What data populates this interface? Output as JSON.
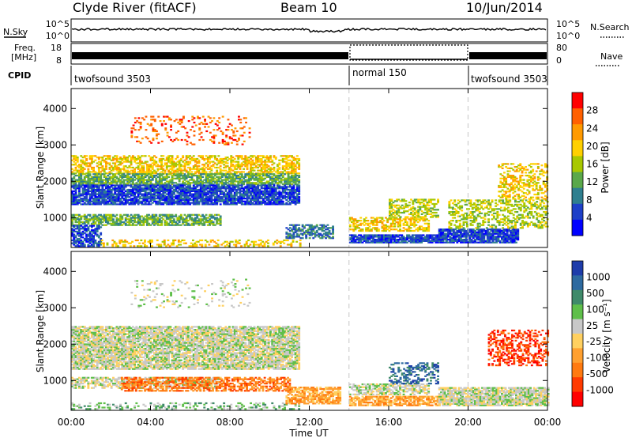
{
  "header": {
    "station": "Clyde River (fitACF)",
    "beam": "Beam 10",
    "date": "10/Jun/2014"
  },
  "top_panels": {
    "nsky_label": "N.Sky",
    "nsearch_label": "N.Search",
    "exp_ticks": [
      "10^5",
      "10^0"
    ],
    "freq_label_line1": "Freq.",
    "freq_label_line2": "[MHz]",
    "freq_ticks": [
      "18",
      "8"
    ],
    "nave_label": "Nave",
    "nave_ticks": [
      "80",
      "0"
    ],
    "cpid_label": "CPID",
    "cpid_segments": [
      {
        "label": "twofsound 3503",
        "start_hour": 0,
        "end_hour": 14
      },
      {
        "label": "normal 150",
        "start_hour": 14,
        "end_hour": 20
      },
      {
        "label": "twofsound 3503",
        "start_hour": 20,
        "end_hour": 24
      }
    ]
  },
  "colorbars": {
    "power": {
      "title": "Power [dB]",
      "tick_labels": [
        "28",
        "24",
        "20",
        "16",
        "12",
        "8",
        "4"
      ],
      "colors": [
        "#ff0000",
        "#ff6000",
        "#ff9a00",
        "#ffd000",
        "#a8c800",
        "#5aa84a",
        "#2f7f8f",
        "#1e40c8",
        "#0000ff"
      ]
    },
    "velocity": {
      "title": "Velocity [m s⁻¹]",
      "tick_labels": [
        "1000",
        "500",
        "100",
        "25",
        "-25",
        "-100",
        "-500",
        "-1000"
      ],
      "colors": [
        "#1e3caa",
        "#2e6aa0",
        "#3f8a6a",
        "#5fbf4a",
        "#c8c8c8",
        "#ffd060",
        "#ffa030",
        "#ff7a10",
        "#ff3a00",
        "#ff0000"
      ]
    }
  },
  "chart_data": [
    {
      "type": "heatmap",
      "name": "Power",
      "ylabel": "Slant Range [km]",
      "xlabel": "Time UT",
      "x_ticks": [
        "00:00",
        "04:00",
        "08:00",
        "12:00",
        "16:00",
        "20:00",
        "00:00"
      ],
      "xlim_hours": [
        0,
        24
      ],
      "y_ticks": [
        1000,
        2000,
        3000,
        4000
      ],
      "ylim_km": [
        180,
        4550
      ],
      "bands": [
        {
          "t0": 0.0,
          "t1": 11.5,
          "r0": 2200,
          "r1": 2700,
          "level": 3,
          "density": 0.6
        },
        {
          "t0": 0.0,
          "t1": 11.5,
          "r0": 1900,
          "r1": 2200,
          "level": 5,
          "density": 0.75
        },
        {
          "t0": 0.0,
          "t1": 11.5,
          "r0": 1350,
          "r1": 1900,
          "level": 7,
          "density": 0.85
        },
        {
          "t0": 0.0,
          "t1": 7.5,
          "r0": 780,
          "r1": 1100,
          "level": 5,
          "density": 0.7
        },
        {
          "t0": 0.0,
          "t1": 1.5,
          "r0": 200,
          "r1": 780,
          "level": 7,
          "density": 0.7
        },
        {
          "t0": 1.5,
          "t1": 11.5,
          "r0": 200,
          "r1": 400,
          "level": 3,
          "density": 0.35
        },
        {
          "t0": 3.0,
          "t1": 9.0,
          "r0": 3000,
          "r1": 3800,
          "level": 1,
          "density": 0.15
        },
        {
          "t0": 10.8,
          "t1": 13.2,
          "r0": 420,
          "r1": 800,
          "level": 6,
          "density": 0.6
        },
        {
          "t0": 14.0,
          "t1": 18.5,
          "r0": 300,
          "r1": 520,
          "level": 7,
          "density": 0.85
        },
        {
          "t0": 14.0,
          "t1": 18.0,
          "r0": 620,
          "r1": 1000,
          "level": 3,
          "density": 0.55
        },
        {
          "t0": 16.0,
          "t1": 18.5,
          "r0": 1000,
          "r1": 1500,
          "level": 4,
          "density": 0.5
        },
        {
          "t0": 18.5,
          "t1": 22.5,
          "r0": 300,
          "r1": 700,
          "level": 7,
          "density": 0.9
        },
        {
          "t0": 19.0,
          "t1": 24.0,
          "r0": 700,
          "r1": 1500,
          "level": 4,
          "density": 0.45
        },
        {
          "t0": 21.5,
          "t1": 24.0,
          "r0": 1500,
          "r1": 2500,
          "level": 3,
          "density": 0.4
        }
      ]
    },
    {
      "type": "heatmap",
      "name": "Velocity",
      "ylabel": "Slant Range [km]",
      "xlabel": "Time UT",
      "x_ticks": [
        "00:00",
        "04:00",
        "08:00",
        "12:00",
        "16:00",
        "20:00",
        "00:00"
      ],
      "xlim_hours": [
        0,
        24
      ],
      "y_ticks": [
        1000,
        2000,
        3000,
        4000
      ],
      "ylim_km": [
        180,
        4550
      ],
      "bands": [
        {
          "t0": 0.0,
          "t1": 11.5,
          "r0": 1300,
          "r1": 2500,
          "level": 4,
          "density": 0.8
        },
        {
          "t0": 0.0,
          "t1": 7.5,
          "r0": 780,
          "r1": 1100,
          "level": 4,
          "density": 0.6
        },
        {
          "t0": 2.5,
          "t1": 11.0,
          "r0": 700,
          "r1": 1100,
          "level": 7,
          "density": 0.55
        },
        {
          "t0": 0.0,
          "t1": 11.5,
          "r0": 200,
          "r1": 400,
          "level": 3,
          "density": 0.3
        },
        {
          "t0": 10.8,
          "t1": 13.5,
          "r0": 350,
          "r1": 800,
          "level": 6,
          "density": 0.7
        },
        {
          "t0": 14.0,
          "t1": 18.5,
          "r0": 300,
          "r1": 550,
          "level": 6,
          "density": 0.75
        },
        {
          "t0": 14.0,
          "t1": 18.0,
          "r0": 600,
          "r1": 900,
          "level": 4,
          "density": 0.6
        },
        {
          "t0": 16.0,
          "t1": 18.5,
          "r0": 900,
          "r1": 1500,
          "level": 1,
          "density": 0.4
        },
        {
          "t0": 18.5,
          "t1": 24.0,
          "r0": 300,
          "r1": 800,
          "level": 4,
          "density": 0.85
        },
        {
          "t0": 21.0,
          "t1": 24.0,
          "r0": 1400,
          "r1": 2400,
          "level": 8,
          "density": 0.4
        },
        {
          "t0": 3.0,
          "t1": 9.0,
          "r0": 3000,
          "r1": 3800,
          "level": 4,
          "density": 0.1
        }
      ]
    }
  ]
}
